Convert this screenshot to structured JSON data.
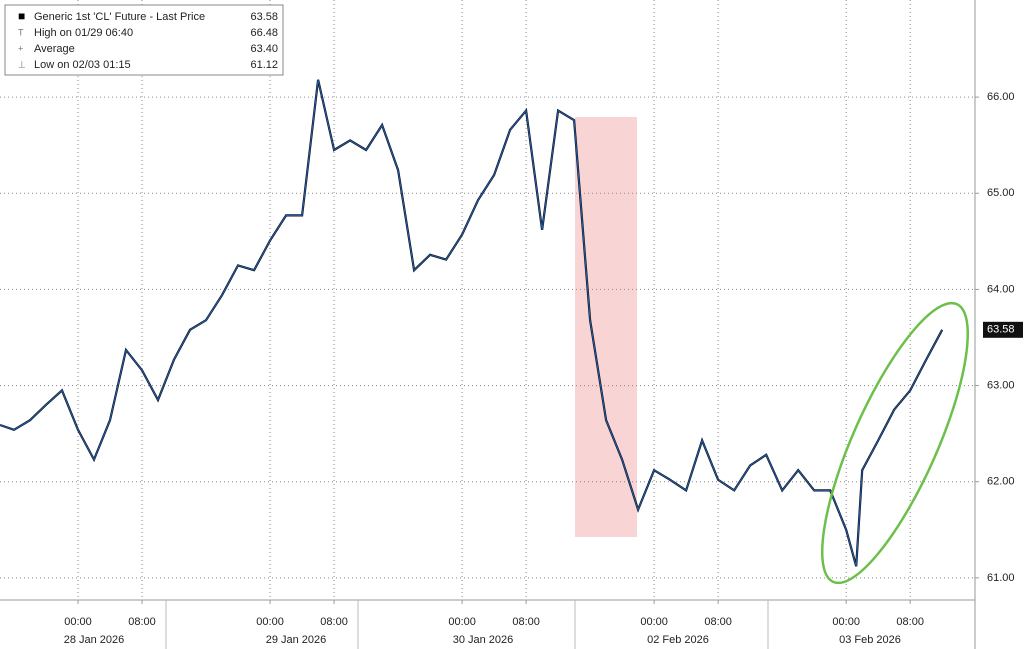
{
  "chart_data": {
    "type": "line",
    "series": [
      {
        "name": "Generic 1st 'CL' Future - Last Price",
        "color": "#1f5fb8",
        "x": [
          -9.75,
          -8,
          -6,
          -4,
          -2,
          0,
          2,
          4,
          6,
          8,
          10,
          12,
          14,
          16,
          18,
          20,
          22,
          24,
          26,
          28,
          30,
          32,
          34,
          36,
          38,
          40,
          42,
          44,
          46,
          48,
          50,
          52,
          54,
          56,
          58,
          60,
          62,
          64,
          66,
          68,
          70,
          72,
          74,
          76,
          78,
          80,
          82,
          84,
          86,
          88,
          90,
          92,
          94,
          96,
          97.25,
          98,
          100,
          102,
          104,
          106,
          108
        ],
        "values": [
          62.59,
          62.54,
          62.64,
          62.8,
          62.95,
          62.54,
          62.23,
          62.64,
          63.37,
          63.16,
          62.85,
          63.27,
          63.58,
          63.68,
          63.94,
          64.25,
          64.2,
          64.51,
          64.77,
          64.77,
          66.18,
          65.45,
          65.55,
          65.45,
          65.71,
          65.24,
          64.2,
          64.36,
          64.31,
          64.57,
          64.93,
          65.19,
          65.66,
          65.86,
          64.62,
          65.86,
          65.76,
          63.68,
          62.64,
          62.23,
          61.71,
          62.12,
          62.02,
          61.91,
          62.43,
          62.02,
          61.91,
          62.17,
          62.28,
          61.91,
          62.12,
          61.91,
          61.91,
          61.5,
          61.12,
          62.12,
          62.43,
          62.75,
          62.95,
          63.27,
          63.58
        ]
      }
    ],
    "legend": [
      {
        "label": "Generic 1st 'CL' Future - Last Price",
        "value": 63.58,
        "value_label": "63.58"
      },
      {
        "label": "High on 01/29 06:40",
        "value": 66.48,
        "value_label": "66.48"
      },
      {
        "label": "Average",
        "value": 63.4,
        "value_label": "63.40"
      },
      {
        "label": "Low on 02/03 01:15",
        "value": 61.12,
        "value_label": "61.12"
      }
    ],
    "xlim": [
      -9.75,
      112.1
    ],
    "xticks": [
      {
        "value": 0,
        "label": "00:00"
      },
      {
        "value": 8,
        "label": "08:00"
      },
      {
        "value": 24,
        "label": "00:00"
      },
      {
        "value": 32,
        "label": "08:00"
      },
      {
        "value": 48,
        "label": "00:00"
      },
      {
        "value": 56,
        "label": "08:00"
      },
      {
        "value": 72,
        "label": "00:00"
      },
      {
        "value": 80,
        "label": "08:00"
      },
      {
        "value": 96,
        "label": "00:00"
      },
      {
        "value": 104,
        "label": "08:00"
      }
    ],
    "date_labels": [
      "28 Jan 2026",
      "29 Jan 2026",
      "30 Jan 2026",
      "02 Feb 2026",
      "03 Feb 2026"
    ],
    "ylim": [
      60.77,
      67.01
    ],
    "yticks": [
      {
        "value": 61,
        "label": "61.00"
      },
      {
        "value": 62,
        "label": "62.00"
      },
      {
        "value": 63,
        "label": "63.00"
      },
      {
        "value": 64,
        "label": "64.00"
      },
      {
        "value": 65,
        "label": "65.00"
      },
      {
        "value": 66,
        "label": "66.00"
      }
    ],
    "grid": true
  }
}
